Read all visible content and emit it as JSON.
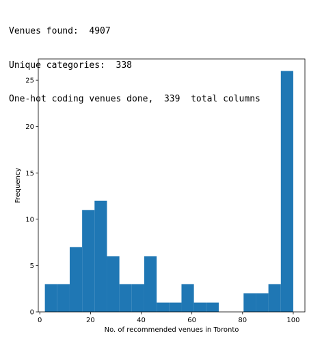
{
  "console_output": {
    "line1": "Venues found:  4907",
    "line2": "Unique categories:  338",
    "line3": "One-hot coding venues done,  339  total columns"
  },
  "chart_data": {
    "type": "bar",
    "title": "",
    "xlabel": "No. of recommended venues in Toronto",
    "ylabel": "Frequency",
    "xlim": [
      -0.6,
      104.6
    ],
    "ylim": [
      0,
      27.3
    ],
    "xticks": [
      0,
      20,
      40,
      60,
      80,
      100
    ],
    "yticks": [
      0,
      5,
      10,
      15,
      20,
      25
    ],
    "bin_edges": [
      2,
      6.9,
      11.8,
      16.7,
      21.6,
      26.5,
      31.4,
      36.3,
      41.2,
      46.1,
      51,
      55.9,
      60.8,
      65.7,
      70.6,
      75.5,
      80.4,
      85.3,
      90.2,
      95.1,
      100
    ],
    "values": [
      3,
      3,
      7,
      11,
      12,
      6,
      3,
      3,
      6,
      1,
      1,
      3,
      1,
      1,
      0,
      0,
      2,
      2,
      3,
      26
    ],
    "bar_color": "#1f77b4",
    "grid": false,
    "legend": "none"
  }
}
